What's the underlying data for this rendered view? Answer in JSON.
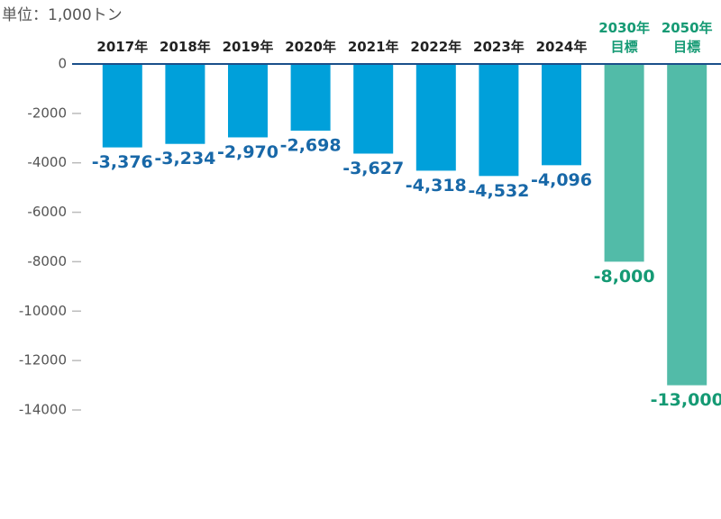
{
  "chart_data": {
    "type": "bar",
    "unit_label": "単位：1,000トン",
    "categories": [
      "2017年",
      "2018年",
      "2019年",
      "2020年",
      "2021年",
      "2022年",
      "2023年",
      "2024年",
      "2030年\n目標",
      "2050年\n目標"
    ],
    "values": [
      -3376,
      -3234,
      -2970,
      -2698,
      -3627,
      -4318,
      -4532,
      -4096,
      -8000,
      -13000
    ],
    "value_labels": [
      "-3,376",
      "-3,234",
      "-2,970",
      "-2,698",
      "-3,627",
      "-4,318",
      "-4,532",
      "-4,096",
      "-8,000",
      "-13,000"
    ],
    "colors": [
      "#00a0da",
      "#00a0da",
      "#00a0da",
      "#00a0da",
      "#00a0da",
      "#00a0da",
      "#00a0da",
      "#00a0da",
      "#52bba8",
      "#52bba8"
    ],
    "label_colors": [
      "#1868a8",
      "#1868a8",
      "#1868a8",
      "#1868a8",
      "#1868a8",
      "#1868a8",
      "#1868a8",
      "#1868a8",
      "#159a74",
      "#159a74"
    ],
    "category_colors": [
      "#222222",
      "#222222",
      "#222222",
      "#222222",
      "#222222",
      "#222222",
      "#222222",
      "#222222",
      "#159a74",
      "#159a74"
    ],
    "ylim": [
      -14000,
      0
    ],
    "yticks": [
      0,
      -2000,
      -4000,
      -6000,
      -8000,
      -10000,
      -12000,
      -14000
    ]
  }
}
